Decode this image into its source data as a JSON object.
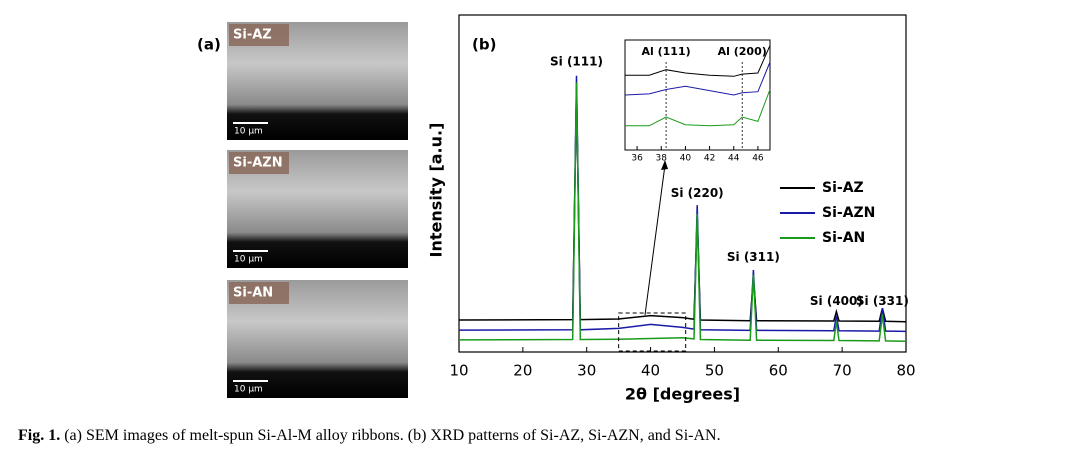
{
  "panel_a": {
    "label": "(a)",
    "images": [
      {
        "sample": "Si-AZ",
        "scale": "10 μm"
      },
      {
        "sample": "Si-AZN",
        "scale": "10 μm"
      },
      {
        "sample": "Si-AN",
        "scale": "10 μm"
      }
    ]
  },
  "chart_data": {
    "type": "line",
    "panel_label": "(b)",
    "x_label": "2θ [degrees]",
    "y_label": "Intensity [a.u.]",
    "xlim": [
      10,
      80
    ],
    "xticks": [
      10,
      20,
      30,
      40,
      50,
      60,
      70,
      80
    ],
    "ylim": [
      0,
      100
    ],
    "x": [
      10,
      27.8,
      28.4,
      29.0,
      35,
      40,
      45,
      46.8,
      47.3,
      47.8,
      55.6,
      56.1,
      56.6,
      68.7,
      69.1,
      69.5,
      75.8,
      76.3,
      76.8,
      80
    ],
    "series": [
      {
        "name": "Si-AZ",
        "color": "#000000",
        "values": [
          9.5,
          9.6,
          78,
          9.6,
          9.8,
          10.8,
          10.2,
          9.7,
          40,
          9.5,
          9.3,
          22,
          9.3,
          9.2,
          12,
          9.2,
          9.1,
          13,
          9.1,
          9.0
        ]
      },
      {
        "name": "Si-AZN",
        "color": "#1a1aa8",
        "values": [
          6.5,
          6.6,
          82,
          6.6,
          7.0,
          8.2,
          7.3,
          6.8,
          43.6,
          6.6,
          6.4,
          24.3,
          6.4,
          6.3,
          10.8,
          6.3,
          6.2,
          13,
          6.2,
          6.1
        ]
      },
      {
        "name": "Si-AN",
        "color": "#1a9a1a",
        "values": [
          3.6,
          3.7,
          80,
          3.7,
          3.8,
          4.0,
          4.2,
          3.9,
          41,
          3.7,
          3.5,
          23,
          3.5,
          3.4,
          9,
          3.4,
          3.3,
          11,
          3.3,
          3.2
        ]
      }
    ],
    "peak_labels": [
      {
        "label": "Si (111)",
        "x": 28.4,
        "y": 86
      },
      {
        "label": "Si (220)",
        "x": 47.3,
        "y": 47
      },
      {
        "label": "Si (311)",
        "x": 56.1,
        "y": 28
      },
      {
        "label": "Si (400)",
        "x": 69.1,
        "y": 15
      },
      {
        "label": "Si (331)",
        "x": 76.3,
        "y": 15
      }
    ],
    "zoom_xlim": [
      35,
      45.5
    ],
    "inset": {
      "xlim": [
        35,
        47
      ],
      "xticks": [
        36,
        38,
        40,
        42,
        44,
        46
      ],
      "ylim": [
        0,
        100
      ],
      "x": [
        35,
        37,
        38.4,
        40,
        42,
        44,
        44.7,
        46,
        47
      ],
      "series": [
        {
          "name": "Si-AZ",
          "color": "#000000",
          "values": [
            68,
            68,
            73,
            70,
            68,
            67,
            69,
            70,
            95
          ]
        },
        {
          "name": "Si-AZN",
          "color": "#1a1aa8",
          "values": [
            50,
            51,
            55,
            58,
            54,
            50,
            52,
            53,
            80
          ]
        },
        {
          "name": "Si-AN",
          "color": "#1a9a1a",
          "values": [
            22,
            22,
            30,
            23,
            22,
            23,
            30,
            26,
            55
          ]
        }
      ],
      "ref_lines": [
        {
          "label": "Al (111)",
          "x": 38.4
        },
        {
          "label": "Al (200)",
          "x": 44.7
        }
      ]
    }
  },
  "caption": {
    "label": "Fig. 1.",
    "text": " (a) SEM images of melt-spun Si-Al-M alloy ribbons. (b) XRD patterns of Si-AZ, Si-AZN, and Si-AN."
  }
}
